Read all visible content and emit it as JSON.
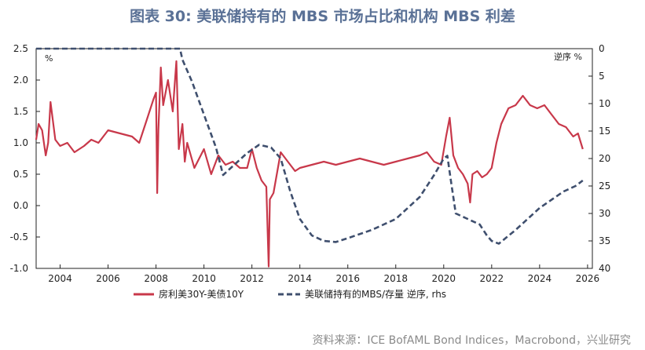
{
  "title": "图表 30: 美联储持有的 MBS 市场占比和机构 MBS 利差",
  "source": "资料来源：ICE BofAML Bond Indices，Macrobond，兴业研究",
  "colors": {
    "spread": "#c8384a",
    "fed_share": "#3f4f6e",
    "title": "#5a7196"
  },
  "chart_data": {
    "type": "line",
    "x_ticks": [
      "2004",
      "2006",
      "2008",
      "2010",
      "2012",
      "2014",
      "2016",
      "2018",
      "2020",
      "2022",
      "2024",
      "2026"
    ],
    "xlim": [
      2003.0,
      2026.2
    ],
    "left_axis": {
      "unit": "%",
      "ylim": [
        -1.0,
        2.5
      ],
      "ticks": [
        "2.5",
        "2.0",
        "1.5",
        "1.0",
        "0.5",
        "0.0",
        "-0.5",
        "-1.0"
      ]
    },
    "right_axis": {
      "unit": "逆序 %",
      "ylim": [
        0,
        40
      ],
      "inverted": true,
      "ticks": [
        "0",
        "5",
        "10",
        "15",
        "20",
        "25",
        "30",
        "35",
        "40"
      ]
    },
    "series": [
      {
        "name": "房利美30Y-美债10Y",
        "axis": "left",
        "style": "solid",
        "x": [
          2003.0,
          2003.1,
          2003.25,
          2003.4,
          2003.5,
          2003.6,
          2003.8,
          2004.0,
          2004.3,
          2004.6,
          2005.0,
          2005.3,
          2005.6,
          2006.0,
          2006.5,
          2007.0,
          2007.3,
          2007.6,
          2007.9,
          2008.0,
          2008.05,
          2008.1,
          2008.2,
          2008.3,
          2008.5,
          2008.7,
          2008.85,
          2008.95,
          2009.1,
          2009.2,
          2009.3,
          2009.6,
          2010.0,
          2010.3,
          2010.6,
          2010.9,
          2011.2,
          2011.5,
          2011.8,
          2012.0,
          2012.2,
          2012.4,
          2012.6,
          2012.7,
          2012.75,
          2012.9,
          2013.2,
          2013.5,
          2013.8,
          2014.0,
          2014.5,
          2015.0,
          2015.5,
          2016.0,
          2016.5,
          2017.0,
          2017.5,
          2018.0,
          2018.5,
          2019.0,
          2019.3,
          2019.6,
          2019.9,
          2020.1,
          2020.25,
          2020.4,
          2020.6,
          2020.8,
          2021.0,
          2021.1,
          2021.2,
          2021.4,
          2021.6,
          2021.8,
          2022.0,
          2022.2,
          2022.4,
          2022.7,
          2023.0,
          2023.3,
          2023.6,
          2023.9,
          2024.2,
          2024.5,
          2024.8,
          2025.1,
          2025.4,
          2025.6,
          2025.8
        ],
        "y": [
          1.05,
          1.3,
          1.2,
          0.8,
          1.0,
          1.65,
          1.05,
          0.95,
          1.0,
          0.85,
          0.95,
          1.05,
          1.0,
          1.2,
          1.15,
          1.1,
          1.0,
          1.35,
          1.7,
          1.8,
          0.2,
          1.2,
          2.2,
          1.6,
          2.0,
          1.5,
          2.3,
          0.9,
          1.3,
          0.7,
          1.0,
          0.6,
          0.9,
          0.5,
          0.8,
          0.65,
          0.7,
          0.6,
          0.6,
          0.9,
          0.6,
          0.4,
          0.3,
          -0.97,
          0.1,
          0.2,
          0.85,
          0.7,
          0.55,
          0.6,
          0.65,
          0.7,
          0.65,
          0.7,
          0.75,
          0.7,
          0.65,
          0.7,
          0.75,
          0.8,
          0.85,
          0.7,
          0.65,
          1.1,
          1.4,
          0.8,
          0.6,
          0.5,
          0.35,
          0.05,
          0.5,
          0.55,
          0.45,
          0.5,
          0.6,
          1.0,
          1.3,
          1.55,
          1.6,
          1.75,
          1.6,
          1.55,
          1.6,
          1.45,
          1.3,
          1.25,
          1.1,
          1.15,
          0.9
        ]
      },
      {
        "name": "美联储持有的MBS/存量 逆序, rhs",
        "axis": "right",
        "style": "dashed",
        "x": [
          2003.0,
          2004.0,
          2006.0,
          2008.0,
          2009.0,
          2009.1,
          2009.5,
          2010.0,
          2010.5,
          2010.8,
          2011.3,
          2011.8,
          2012.3,
          2012.8,
          2013.2,
          2013.6,
          2014.0,
          2014.5,
          2015.0,
          2015.5,
          2016.0,
          2017.0,
          2018.0,
          2019.0,
          2019.6,
          2020.0,
          2020.15,
          2020.3,
          2020.5,
          2021.0,
          2021.5,
          2021.8,
          2022.0,
          2022.3,
          2023.0,
          2023.5,
          2024.0,
          2024.5,
          2025.0,
          2025.5,
          2025.8
        ],
        "y": [
          0,
          0,
          0,
          0,
          0,
          2,
          6,
          12,
          18,
          23,
          21,
          19,
          17.5,
          18,
          20,
          26,
          31,
          34,
          35,
          35.2,
          34.5,
          33,
          31,
          27,
          23,
          20,
          19.5,
          24,
          30,
          31,
          32,
          34,
          35,
          35.5,
          33,
          31,
          29,
          27.5,
          26,
          25,
          24
        ]
      }
    ]
  }
}
